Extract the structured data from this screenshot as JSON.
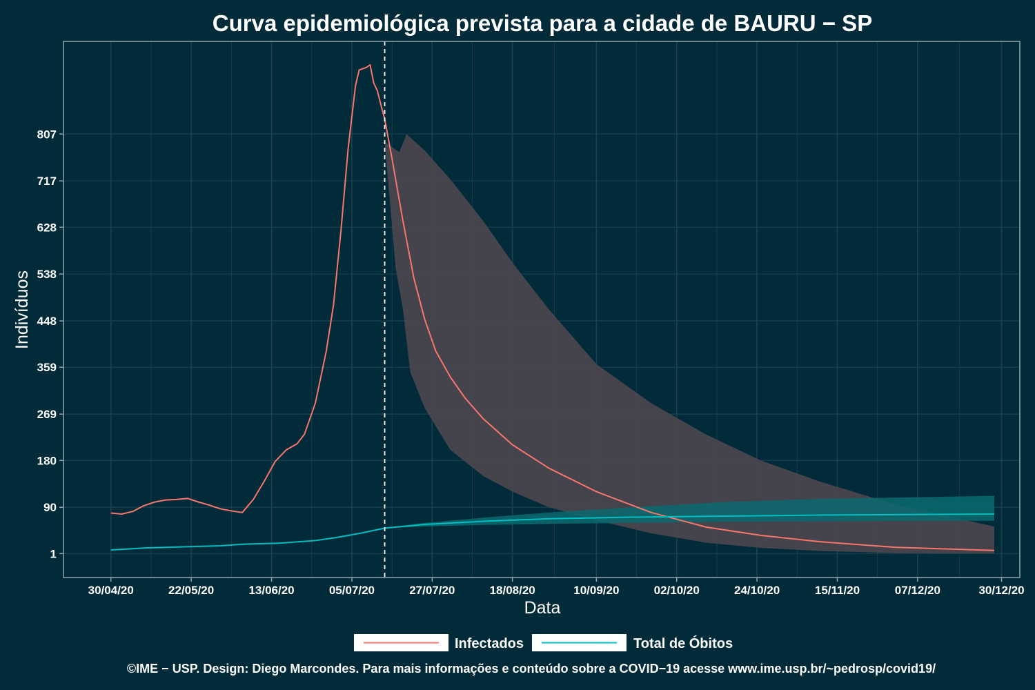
{
  "chart_data": {
    "type": "line",
    "title": "Curva epidemiológica prevista para a cidade de BAURU − SP",
    "xlabel": "Data",
    "ylabel": "Indivíduos",
    "x_tick_labels": [
      "30/04/20",
      "22/05/20",
      "13/06/20",
      "05/07/20",
      "27/07/20",
      "18/08/20",
      "10/09/20",
      "02/10/20",
      "24/10/20",
      "15/11/20",
      "07/12/20",
      "30/12/20"
    ],
    "y_ticks": [
      1,
      90,
      180,
      269,
      359,
      448,
      538,
      628,
      717,
      807
    ],
    "y_tick_labels": [
      "1",
      "90",
      "180",
      "269",
      "359",
      "448",
      "538",
      "628",
      "717",
      "807"
    ],
    "xlim": [
      "2020-04-17",
      "2021-01-04"
    ],
    "ylim": [
      -45,
      985
    ],
    "vline_date": "2020-07-14",
    "grid": true,
    "legend_position": "bottom",
    "colors": {
      "background": "#022b3a",
      "infectados": "#f8766d",
      "obitos": "#00bfc4",
      "band_infectados": "#49464d",
      "band_obitos": "#0a6a70",
      "grid": "#1b4150",
      "axis": "#8fa6ab",
      "vline": "#ffffff"
    },
    "series": [
      {
        "name": "Infectados",
        "observed": [
          [
            "2020-04-30",
            79
          ],
          [
            "2020-05-03",
            77
          ],
          [
            "2020-05-06",
            82
          ],
          [
            "2020-05-09",
            93
          ],
          [
            "2020-05-12",
            100
          ],
          [
            "2020-05-15",
            104
          ],
          [
            "2020-05-18",
            105
          ],
          [
            "2020-05-21",
            107
          ],
          [
            "2020-05-24",
            100
          ],
          [
            "2020-05-27",
            94
          ],
          [
            "2020-05-30",
            87
          ],
          [
            "2020-06-02",
            83
          ],
          [
            "2020-06-05",
            80
          ],
          [
            "2020-06-08",
            105
          ],
          [
            "2020-06-11",
            140
          ],
          [
            "2020-06-14",
            178
          ],
          [
            "2020-06-17",
            200
          ],
          [
            "2020-06-20",
            212
          ],
          [
            "2020-06-22",
            230
          ],
          [
            "2020-06-25",
            290
          ],
          [
            "2020-06-28",
            390
          ],
          [
            "2020-06-30",
            480
          ],
          [
            "2020-07-02",
            620
          ],
          [
            "2020-07-04",
            780
          ],
          [
            "2020-07-06",
            900
          ],
          [
            "2020-07-07",
            930
          ],
          [
            "2020-07-09",
            935
          ],
          [
            "2020-07-10",
            940
          ],
          [
            "2020-07-11",
            905
          ],
          [
            "2020-07-12",
            890
          ],
          [
            "2020-07-13",
            862
          ],
          [
            "2020-07-14",
            836
          ]
        ],
        "projection": [
          [
            "2020-07-14",
            836
          ],
          [
            "2020-07-16",
            760
          ],
          [
            "2020-07-19",
            640
          ],
          [
            "2020-07-22",
            530
          ],
          [
            "2020-07-25",
            450
          ],
          [
            "2020-07-28",
            390
          ],
          [
            "2020-08-01",
            340
          ],
          [
            "2020-08-05",
            300
          ],
          [
            "2020-08-10",
            260
          ],
          [
            "2020-08-18",
            210
          ],
          [
            "2020-08-28",
            165
          ],
          [
            "2020-09-10",
            120
          ],
          [
            "2020-09-25",
            80
          ],
          [
            "2020-10-10",
            52
          ],
          [
            "2020-10-25",
            36
          ],
          [
            "2020-11-10",
            24
          ],
          [
            "2020-12-01",
            13
          ],
          [
            "2020-12-28",
            7
          ]
        ],
        "band_upper": [
          [
            "2020-07-14",
            792
          ],
          [
            "2020-07-18",
            772
          ],
          [
            "2020-07-20",
            807
          ],
          [
            "2020-07-25",
            775
          ],
          [
            "2020-08-01",
            720
          ],
          [
            "2020-08-10",
            640
          ],
          [
            "2020-08-18",
            560
          ],
          [
            "2020-08-28",
            470
          ],
          [
            "2020-09-10",
            365
          ],
          [
            "2020-09-25",
            290
          ],
          [
            "2020-10-10",
            230
          ],
          [
            "2020-10-25",
            180
          ],
          [
            "2020-11-10",
            140
          ],
          [
            "2020-12-01",
            95
          ],
          [
            "2020-12-28",
            53
          ]
        ],
        "band_lower": [
          [
            "2020-07-14",
            792
          ],
          [
            "2020-07-17",
            550
          ],
          [
            "2020-07-19",
            470
          ],
          [
            "2020-07-21",
            350
          ],
          [
            "2020-07-25",
            280
          ],
          [
            "2020-08-01",
            200
          ],
          [
            "2020-08-10",
            150
          ],
          [
            "2020-08-18",
            120
          ],
          [
            "2020-08-28",
            90
          ],
          [
            "2020-09-10",
            65
          ],
          [
            "2020-09-25",
            40
          ],
          [
            "2020-10-10",
            22
          ],
          [
            "2020-10-25",
            12
          ],
          [
            "2020-11-10",
            6
          ],
          [
            "2020-12-01",
            2
          ],
          [
            "2020-12-28",
            1
          ]
        ]
      },
      {
        "name": "Total de Óbitos",
        "observed": [
          [
            "2020-04-30",
            8
          ],
          [
            "2020-05-10",
            12
          ],
          [
            "2020-05-20",
            14
          ],
          [
            "2020-05-30",
            16
          ],
          [
            "2020-06-05",
            19
          ],
          [
            "2020-06-15",
            21
          ],
          [
            "2020-06-25",
            26
          ],
          [
            "2020-07-01",
            32
          ],
          [
            "2020-07-08",
            41
          ],
          [
            "2020-07-14",
            50
          ]
        ],
        "projection": [
          [
            "2020-07-14",
            50
          ],
          [
            "2020-07-25",
            57
          ],
          [
            "2020-08-10",
            63
          ],
          [
            "2020-08-28",
            68
          ],
          [
            "2020-09-20",
            71
          ],
          [
            "2020-10-15",
            73
          ],
          [
            "2020-11-10",
            75
          ],
          [
            "2020-12-28",
            77
          ]
        ],
        "band_upper": [
          [
            "2020-07-14",
            50
          ],
          [
            "2020-07-25",
            60
          ],
          [
            "2020-08-10",
            70
          ],
          [
            "2020-08-28",
            80
          ],
          [
            "2020-09-20",
            90
          ],
          [
            "2020-10-15",
            100
          ],
          [
            "2020-11-10",
            106
          ],
          [
            "2020-12-28",
            112
          ]
        ],
        "band_lower": [
          [
            "2020-07-14",
            50
          ],
          [
            "2020-07-25",
            53
          ],
          [
            "2020-08-10",
            56
          ],
          [
            "2020-08-28",
            58
          ],
          [
            "2020-09-20",
            60
          ],
          [
            "2020-10-15",
            62
          ],
          [
            "2020-11-10",
            63
          ],
          [
            "2020-12-28",
            64
          ]
        ]
      }
    ]
  },
  "legend": {
    "items": [
      {
        "label": "Infectados",
        "color": "#f8766d"
      },
      {
        "label": "Total de Óbitos",
        "color": "#00bfc4"
      }
    ]
  },
  "caption": "©IME − USP. Design: Diego Marcondes. Para mais informações e conteúdo sobre a COVID−19 acesse www.ime.usp.br/~pedrosp/covid19/"
}
